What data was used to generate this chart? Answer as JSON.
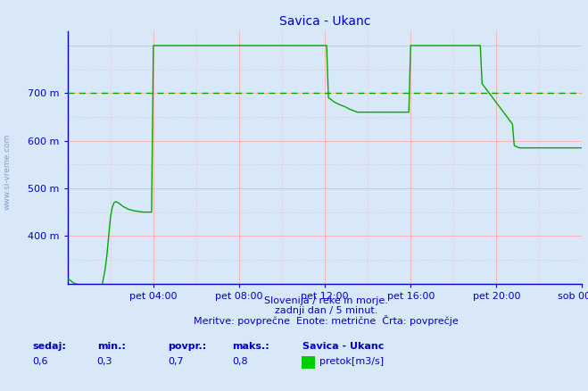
{
  "title": "Savica - Ukanc",
  "bg_color": "#d8e8f8",
  "plot_bg_color": "#d8e8f8",
  "line_color": "#00aa00",
  "avg_line_color": "#00aa00",
  "grid_color_major": "#ffaaaa",
  "grid_color_minor": "#ddbbbb",
  "axis_color": "#0000cc",
  "title_color": "#0000cc",
  "ylim": [
    300,
    830
  ],
  "yticks": [
    400,
    500,
    600,
    700
  ],
  "ytick_labels": [
    "400 m",
    "500 m",
    "600 m",
    "700 m"
  ],
  "avg_value": 700,
  "xtick_labels": [
    "pet 04:00",
    "pet 08:00",
    "pet 12:00",
    "pet 16:00",
    "pet 20:00",
    "sob 00:00"
  ],
  "xtick_positions": [
    48,
    96,
    144,
    192,
    240,
    288
  ],
  "total_points": 288,
  "subtitle1": "Slovenija / reke in morje.",
  "subtitle2": "zadnji dan / 5 minut.",
  "subtitle3": "Meritve: povprečne  Enote: metrične  Črta: povprečje",
  "stat_label1": "sedaj:",
  "stat_label2": "min.:",
  "stat_label3": "povpr.:",
  "stat_label4": "maks.:",
  "stat_val1": "0,6",
  "stat_val2": "0,3",
  "stat_val3": "0,7",
  "stat_val4": "0,8",
  "legend_title": "Savica - Ukanc",
  "legend_label": "pretok[m3/s]",
  "legend_color": "#00cc00",
  "watermark": "www.si-vreme.com",
  "data_y": [
    310,
    308,
    305,
    302,
    300,
    299,
    298,
    297,
    296,
    295,
    295,
    294,
    293,
    292,
    292,
    291,
    291,
    290,
    290,
    290,
    310,
    330,
    360,
    400,
    440,
    460,
    470,
    472,
    470,
    468,
    465,
    462,
    460,
    458,
    456,
    455,
    454,
    453,
    452,
    452,
    451,
    451,
    450,
    450,
    450,
    450,
    450,
    450,
    800,
    800,
    800,
    800,
    800,
    800,
    800,
    800,
    800,
    800,
    800,
    800,
    800,
    800,
    800,
    800,
    800,
    800,
    800,
    800,
    800,
    800,
    800,
    800,
    800,
    800,
    800,
    800,
    800,
    800,
    800,
    800,
    800,
    800,
    800,
    800,
    800,
    800,
    800,
    800,
    800,
    800,
    800,
    800,
    800,
    800,
    800,
    800,
    800,
    800,
    800,
    800,
    800,
    800,
    800,
    800,
    800,
    800,
    800,
    800,
    800,
    800,
    800,
    800,
    800,
    800,
    800,
    800,
    800,
    800,
    800,
    800,
    800,
    800,
    800,
    800,
    800,
    800,
    800,
    800,
    800,
    800,
    800,
    800,
    800,
    800,
    800,
    800,
    800,
    800,
    800,
    800,
    800,
    800,
    800,
    800,
    800,
    800,
    690,
    688,
    685,
    682,
    680,
    678,
    676,
    675,
    673,
    672,
    670,
    668,
    666,
    665,
    663,
    662,
    660,
    660,
    660,
    660,
    660,
    660,
    660,
    660,
    660,
    660,
    660,
    660,
    660,
    660,
    660,
    660,
    660,
    660,
    660,
    660,
    660,
    660,
    660,
    660,
    660,
    660,
    660,
    660,
    660,
    660,
    800,
    800,
    800,
    800,
    800,
    800,
    800,
    800,
    800,
    800,
    800,
    800,
    800,
    800,
    800,
    800,
    800,
    800,
    800,
    800,
    800,
    800,
    800,
    800,
    800,
    800,
    800,
    800,
    800,
    800,
    800,
    800,
    800,
    800,
    800,
    800,
    800,
    800,
    800,
    800,
    720,
    715,
    710,
    705,
    700,
    695,
    690,
    685,
    680,
    675,
    670,
    665,
    660,
    655,
    650,
    645,
    640,
    635,
    590,
    588,
    586,
    585,
    585,
    585,
    585,
    585,
    585,
    585,
    585,
    585,
    585,
    585,
    585,
    585,
    585,
    585,
    585,
    585,
    585,
    585,
    585,
    585,
    585,
    585,
    585,
    585,
    585,
    585,
    585,
    585,
    585,
    585,
    585,
    585,
    585,
    585,
    585,
    585
  ]
}
